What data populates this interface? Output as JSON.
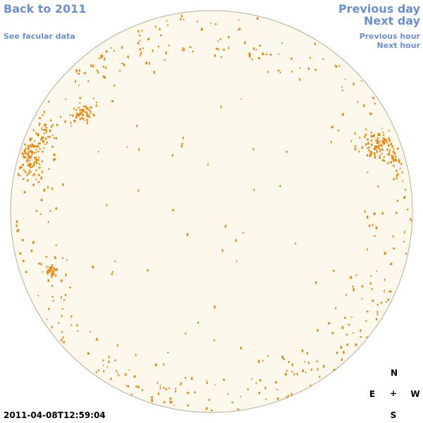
{
  "nav": {
    "back": "Back to 2011",
    "facular": "See facular data",
    "prev_day": "Previous day",
    "next_day": "Next day",
    "prev_hour": "Previous hour",
    "next_hour": "Next hour"
  },
  "timestamp": "2011-04-08T12:59:04",
  "compass": {
    "north": "N",
    "east": "E",
    "center": "+",
    "west": "W",
    "south": "S"
  },
  "colors": {
    "disk_fill": "#fdf8ec",
    "disk_edge": "#b9ad96",
    "feature": "#e8870a",
    "link": "#6b8fd6"
  }
}
